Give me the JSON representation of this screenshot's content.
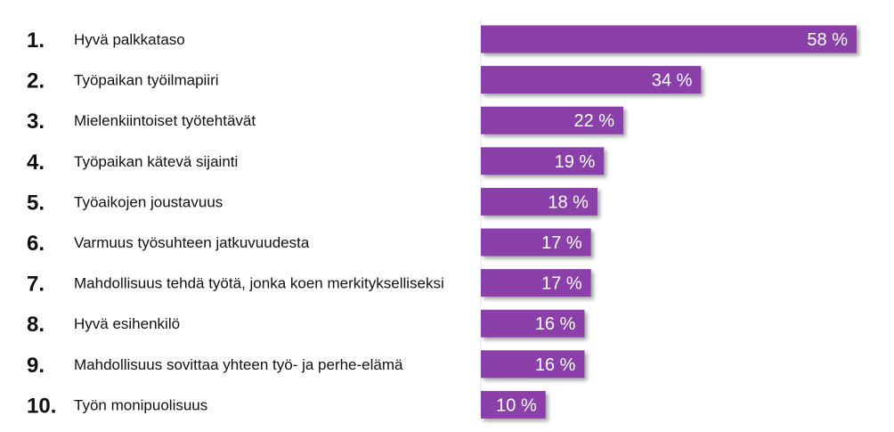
{
  "chart_data": {
    "type": "bar",
    "orientation": "horizontal",
    "title": "",
    "xlabel": "",
    "ylabel": "",
    "xlim": [
      0,
      58
    ],
    "grid": false,
    "legend": "none",
    "bar_color": "#8b3fa9",
    "ranks": [
      "1.",
      "2.",
      "3.",
      "4.",
      "5.",
      "6.",
      "7.",
      "8.",
      "9.",
      "10."
    ],
    "categories": [
      "Hyvä palkkataso",
      "Työpaikan työilmapiiri",
      "Mielenkiintoiset työtehtävät",
      "Työpaikan kätevä sijainti",
      "Työaikojen joustavuus",
      "Varmuus työsuhteen jatkuvuudesta",
      "Mahdollisuus tehdä työtä, jonka koen merkitykselliseksi",
      "Hyvä esihenkilö",
      "Mahdollisuus sovittaa yhteen työ- ja perhe-elämä",
      "Työn monipuolisuus"
    ],
    "values": [
      58,
      34,
      22,
      19,
      18,
      17,
      17,
      16,
      16,
      10
    ],
    "value_labels": [
      "58 %",
      "34 %",
      "22 %",
      "19 %",
      "18 %",
      "17 %",
      "17 %",
      "16 %",
      "16 %",
      "10 %"
    ]
  }
}
